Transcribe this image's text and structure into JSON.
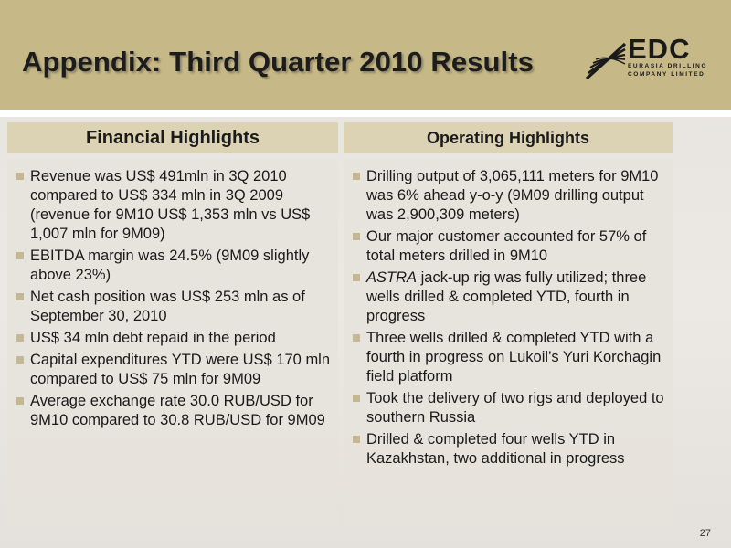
{
  "header": {
    "title": "Appendix: Third Quarter 2010 Results",
    "logo": {
      "word": "EDC",
      "sub_line1": "EURASIA DRILLING",
      "sub_line2": "COMPANY LIMITED",
      "icon": "wave-stripes-icon"
    }
  },
  "financial": {
    "heading": "Financial Highlights",
    "items": [
      "Revenue was US$ 491mln in 3Q 2010 compared to US$ 334 mln in 3Q 2009 (revenue for 9M10 US$ 1,353 mln vs US$ 1,007 mln for 9M09)",
      "EBITDA margin was 24.5% (9M09 slightly above 23%)",
      "Net cash position was US$ 253 mln as of September 30, 2010",
      "US$ 34 mln debt repaid in the period",
      "Capital expenditures YTD were US$ 170 mln compared to US$ 75 mln for 9M09",
      "Average exchange rate 30.0 RUB/USD for 9M10 compared to 30.8 RUB/USD for 9M09"
    ]
  },
  "operating": {
    "heading": "Operating Highlights",
    "items": [
      "Drilling output of 3,065,111 meters for 9M10 was 6% ahead y-o-y (9M09 drilling output was 2,900,309 meters)",
      "Our major customer accounted for 57% of total meters drilled in 9M10",
      {
        "italic": "ASTRA",
        "rest": " jack-up rig was fully utilized; three wells drilled & completed YTD, fourth in progress"
      },
      "Three wells drilled & completed YTD with a fourth in progress on Lukoil’s Yuri Korchagin field platform",
      "Took the delivery of two rigs and deployed to southern Russia",
      "Drilled & completed four wells YTD in Kazakhstan, two additional in progress"
    ]
  },
  "footer": {
    "page_number": "27"
  },
  "colors": {
    "header_bg": "#c6b887",
    "panel_head_bg": "#dcd3b4",
    "bullet": "#c3b891"
  }
}
